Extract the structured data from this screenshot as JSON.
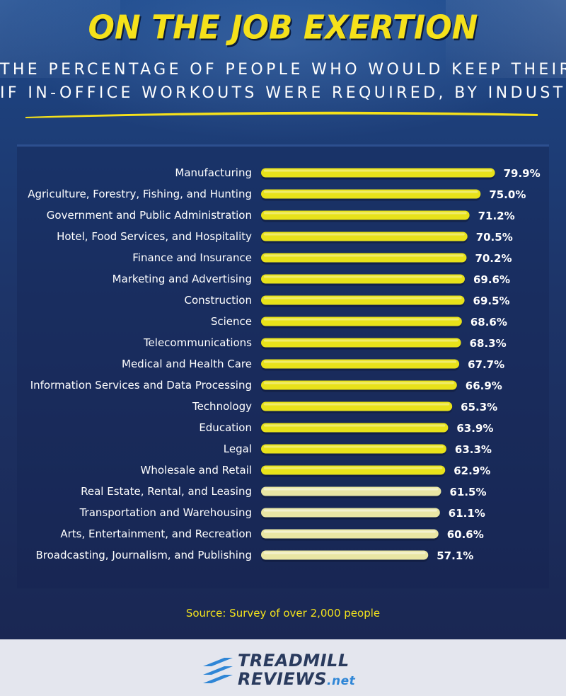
{
  "header": {
    "title": "ON THE JOB EXERTION",
    "subtitle_line1": "THE PERCENTAGE OF PEOPLE WHO WOULD KEEP THEIR JOB",
    "subtitle_line2": "IF IN-OFFICE WORKOUTS WERE REQUIRED, BY INDUSTRY"
  },
  "colors": {
    "title": "#f5e11b",
    "bar_bright": "#e8e21a",
    "bar_pale": "#e9e6a4",
    "label": "#ffffff",
    "background": "#1d3468",
    "source": "#f2e21c"
  },
  "chart_data": {
    "type": "bar",
    "orientation": "horizontal",
    "categories": [
      "Manufacturing",
      "Agriculture, Forestry, Fishing, and Hunting",
      "Government and Public Administration",
      "Hotel, Food Services, and Hospitality",
      "Finance and Insurance",
      "Marketing and Advertising",
      "Construction",
      "Science",
      "Telecommunications",
      "Medical and Health Care",
      "Information Services and Data Processing",
      "Technology",
      "Education",
      "Legal",
      "Wholesale and Retail",
      "Real Estate, Rental, and Leasing",
      "Transportation and Warehousing",
      "Arts, Entertainment, and Recreation",
      "Broadcasting, Journalism, and Publishing"
    ],
    "values": [
      79.9,
      75.0,
      71.2,
      70.5,
      70.2,
      69.6,
      69.5,
      68.6,
      68.3,
      67.7,
      66.9,
      65.3,
      63.9,
      63.3,
      62.9,
      61.5,
      61.1,
      60.6,
      57.1
    ],
    "value_labels": [
      "79.9%",
      "75.0%",
      "71.2%",
      "70.5%",
      "70.2%",
      "69.6%",
      "69.5%",
      "68.6%",
      "68.3%",
      "67.7%",
      "66.9%",
      "65.3%",
      "63.9%",
      "63.3%",
      "62.9%",
      "61.5%",
      "61.1%",
      "60.6%",
      "57.1%"
    ],
    "bright_bar_count": 15,
    "ylim": [
      0,
      80
    ],
    "grid": false,
    "legend": "none"
  },
  "source": "Source: Survey of over 2,000 people",
  "brand": {
    "line1": "TREADMILL",
    "line2": "REVIEWS",
    "suffix": ".net"
  }
}
